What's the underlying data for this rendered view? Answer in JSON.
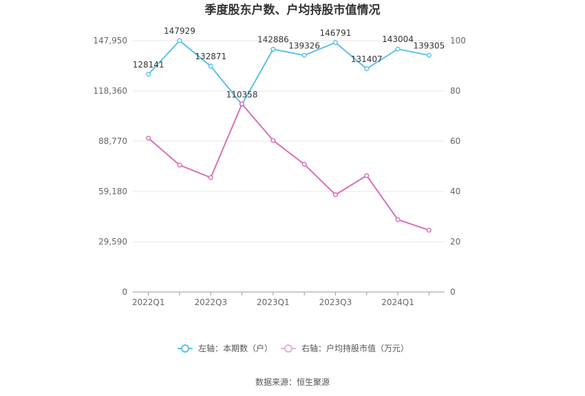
{
  "chart_data": {
    "type": "line",
    "title": "季度股东户数、户均持股市值情况",
    "categories": [
      "2022Q1",
      "2022Q2",
      "2022Q3",
      "2022Q4",
      "2023Q1",
      "2023Q2",
      "2023Q3",
      "2023Q4",
      "2024Q1",
      "2024Q2"
    ],
    "x_tick_labels": [
      "2022Q1",
      "2022Q3",
      "2023Q1",
      "2023Q3",
      "2024Q1"
    ],
    "left_axis": {
      "ticks": [
        0,
        29590,
        59180,
        88770,
        118360,
        147950
      ],
      "tick_labels": [
        "0",
        "29,590",
        "59,180",
        "88,770",
        "118,360",
        "147,950"
      ],
      "min": 0,
      "max": 147950
    },
    "right_axis": {
      "ticks": [
        0,
        20,
        40,
        60,
        80,
        100
      ],
      "min": 0,
      "max": 100
    },
    "series": [
      {
        "name": "左轴：本期数（户）",
        "axis": "left",
        "color": "#5bc0eb",
        "values": [
          128141,
          147929,
          132871,
          110358,
          142886,
          139326,
          146791,
          131407,
          143004,
          139305
        ],
        "labels": [
          "128141",
          "147929",
          "132871",
          "110358",
          "142886",
          "139326",
          "146791",
          "131407",
          "143004",
          "139305"
        ]
      },
      {
        "name": "右轴：户均持股市值（万元）",
        "axis": "right",
        "color": "#d96fb4",
        "values": [
          61.2,
          50.5,
          45.5,
          74.8,
          60.3,
          50.8,
          38.7,
          46.3,
          28.8,
          24.6
        ]
      }
    ],
    "grid": true,
    "legend_position": "bottom",
    "source": "数据来源：恒生聚源"
  }
}
